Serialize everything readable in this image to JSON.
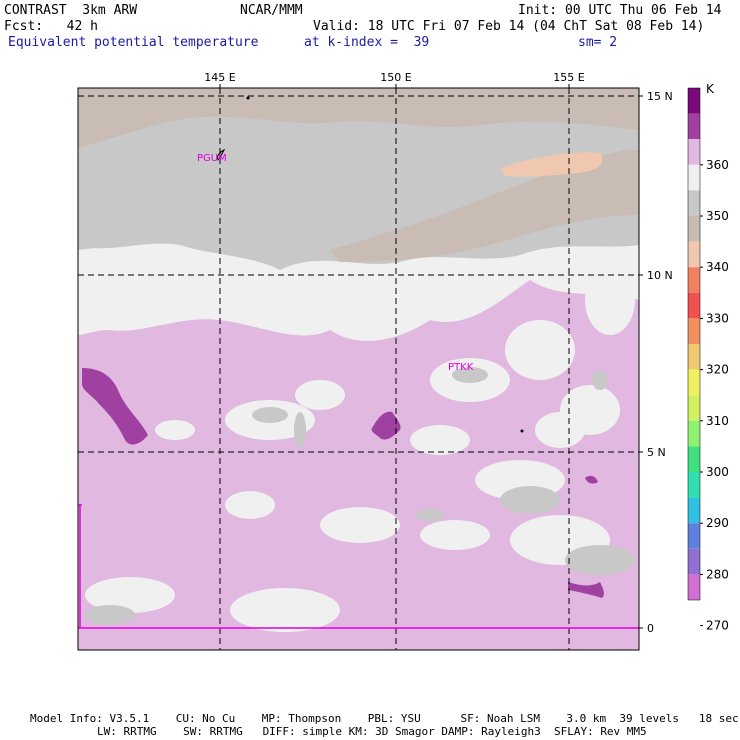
{
  "header": {
    "line1_left": "CONTRAST  3km ARW",
    "line1_center": "NCAR/MMM",
    "line1_right": "Init: 00 UTC Thu 06 Feb 14",
    "line2_left": "Fcst:   42 h",
    "line2_right": "Valid: 18 UTC Fri 07 Feb 14 (04 ChT Sat 08 Feb 14)",
    "line3_left": "Equivalent potential temperature",
    "line3_center": "at k-index =  39",
    "line3_right": "sm= 2"
  },
  "axes": {
    "lon_labels": [
      "145 E",
      "150 E",
      "155 E"
    ],
    "lat_labels": [
      "15 N",
      "10 N",
      "5 N",
      "0"
    ]
  },
  "stations": [
    {
      "name": "PGUM"
    },
    {
      "name": "PTKK"
    }
  ],
  "legend": {
    "unit": "K",
    "ticks": [
      "360",
      "350",
      "340",
      "330",
      "320",
      "310",
      "300",
      "290",
      "280",
      "270"
    ],
    "colors": [
      "#7a0a7a",
      "#a040a0",
      "#e0b8e0",
      "#f0f0f0",
      "#c8c8c8",
      "#c8bcb4",
      "#f0c8b0",
      "#f08060",
      "#f05050",
      "#f09060",
      "#f0c870",
      "#f0f060",
      "#d0f060",
      "#90f070",
      "#40e080",
      "#30e0b0",
      "#30c0e0",
      "#6080e0",
      "#9070d0",
      "#d070d0"
    ]
  },
  "map_colors": {
    "grey": "#c8c8c8",
    "white": "#f0f0f0",
    "tan": "#c8bcb4",
    "peach": "#f0c8b0",
    "lilac": "#e0b8e0",
    "purple": "#a040a0",
    "magenta": "#e000e0"
  },
  "footer": {
    "line1": "Model Info: V3.5.1    CU: No Cu    MP: Thompson    PBL: YSU      SF: Noah LSM    3.0 km  39 levels   18 sec",
    "line2": "LW: RRTMG    SW: RRTMG   DIFF: simple KM: 3D Smagor DAMP: Rayleigh3  SFLAY: Rev MM5"
  }
}
